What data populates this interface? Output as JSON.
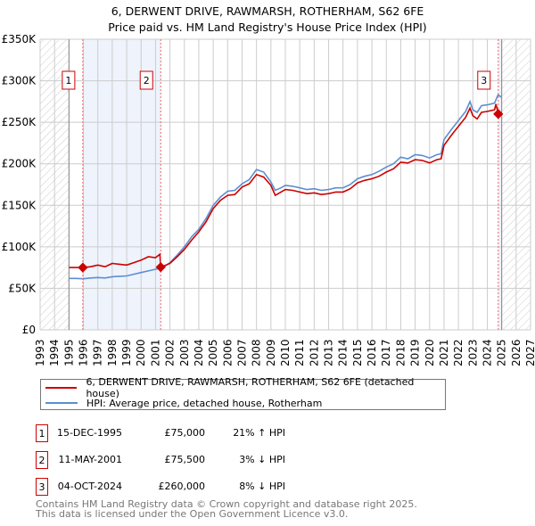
{
  "chart_data": {
    "type": "line",
    "title": "6, DERWENT DRIVE, RAWMARSH, ROTHERHAM, S62 6FE",
    "subtitle": "Price paid vs. HM Land Registry's House Price Index (HPI)",
    "xlabel": "",
    "ylabel": "",
    "xlim": [
      1993,
      2027
    ],
    "ylim": [
      0,
      350000
    ],
    "grid": true,
    "x_ticks": [
      "1993",
      "1994",
      "1995",
      "1996",
      "1997",
      "1998",
      "1999",
      "2000",
      "2001",
      "2002",
      "2003",
      "2004",
      "2005",
      "2006",
      "2007",
      "2008",
      "2009",
      "2010",
      "2011",
      "2012",
      "2013",
      "2014",
      "2015",
      "2016",
      "2017",
      "2018",
      "2019",
      "2020",
      "2021",
      "2022",
      "2023",
      "2024",
      "2025",
      "2026",
      "2027"
    ],
    "y_ticks": [
      {
        "v": 0,
        "label": "£0"
      },
      {
        "v": 50000,
        "label": "£50K"
      },
      {
        "v": 100000,
        "label": "£100K"
      },
      {
        "v": 150000,
        "label": "£150K"
      },
      {
        "v": 200000,
        "label": "£200K"
      },
      {
        "v": 250000,
        "label": "£250K"
      },
      {
        "v": 300000,
        "label": "£300K"
      },
      {
        "v": 350000,
        "label": "£350K"
      }
    ],
    "hatched_ranges": [
      [
        1993,
        1995
      ],
      [
        2025,
        2027
      ]
    ],
    "shaded_ranges": [
      [
        1995.96,
        2001.36
      ],
      [
        2024.76,
        2025
      ]
    ],
    "series": [
      {
        "name": "6, DERWENT DRIVE, RAWMARSH, ROTHERHAM, S62 6FE (detached house)",
        "color": "#cc0000",
        "x": [
          1995,
          1995.96,
          1996.5,
          1997,
          1997.5,
          1998,
          1998.5,
          1999,
          1999.5,
          2000,
          2000.5,
          2001,
          2001.3,
          2001.36,
          2002,
          2002.5,
          2003,
          2003.5,
          2004,
          2004.5,
          2005,
          2005.5,
          2006,
          2006.5,
          2007,
          2007.5,
          2008,
          2008.5,
          2009,
          2009.3,
          2009.7,
          2010,
          2010.5,
          2011,
          2011.5,
          2012,
          2012.5,
          2013,
          2013.5,
          2014,
          2014.5,
          2015,
          2015.5,
          2016,
          2016.5,
          2017,
          2017.5,
          2018,
          2018.5,
          2019,
          2019.5,
          2020,
          2020.5,
          2020.8,
          2021,
          2021.5,
          2022,
          2022.5,
          2022.8,
          2023,
          2023.3,
          2023.6,
          2024,
          2024.5,
          2024.6,
          2024.76
        ],
        "y": [
          75000,
          75000,
          76000,
          78000,
          76000,
          80000,
          79000,
          78000,
          81000,
          84000,
          88000,
          87000,
          91000,
          75500,
          80000,
          88000,
          97000,
          108000,
          118000,
          130000,
          146000,
          156000,
          162000,
          163000,
          172000,
          176000,
          187000,
          184000,
          174000,
          162000,
          166000,
          169000,
          168000,
          166000,
          164000,
          165000,
          163000,
          164000,
          166000,
          166000,
          170000,
          177000,
          180000,
          182000,
          185000,
          190000,
          194000,
          202000,
          201000,
          205000,
          204000,
          201000,
          205000,
          206000,
          222000,
          234000,
          245000,
          256000,
          267000,
          258000,
          254000,
          262000,
          263000,
          265000,
          272000,
          260000
        ]
      },
      {
        "name": "HPI: Average price, detached house, Rotherham",
        "color": "#5b8fd0",
        "x": [
          1995,
          1995.5,
          1996,
          1996.5,
          1997,
          1997.5,
          1998,
          1998.5,
          1999,
          1999.5,
          2000,
          2000.5,
          2001,
          2001.5,
          2002,
          2002.5,
          2003,
          2003.5,
          2004,
          2004.5,
          2005,
          2005.5,
          2006,
          2006.5,
          2007,
          2007.5,
          2008,
          2008.5,
          2009,
          2009.3,
          2009.7,
          2010,
          2010.5,
          2011,
          2011.5,
          2012,
          2012.5,
          2013,
          2013.5,
          2014,
          2014.5,
          2015,
          2015.5,
          2016,
          2016.5,
          2017,
          2017.5,
          2018,
          2018.5,
          2019,
          2019.5,
          2020,
          2020.5,
          2020.8,
          2021,
          2021.5,
          2022,
          2022.5,
          2022.8,
          2023,
          2023.3,
          2023.6,
          2024,
          2024.5,
          2024.75,
          2025
        ],
        "y": [
          62000,
          62000,
          61500,
          62500,
          63000,
          62500,
          64000,
          64500,
          65000,
          67000,
          69000,
          71000,
          73000,
          75000,
          81000,
          90000,
          100000,
          112000,
          121000,
          134000,
          150000,
          160000,
          167000,
          168000,
          176000,
          181000,
          193000,
          190000,
          178000,
          168000,
          171000,
          174000,
          173000,
          171000,
          169000,
          170000,
          168000,
          169000,
          171000,
          171000,
          175000,
          182000,
          185000,
          187000,
          191000,
          196000,
          200000,
          208000,
          206000,
          211000,
          210000,
          207000,
          211000,
          212000,
          229000,
          241000,
          252000,
          263000,
          275000,
          265000,
          262000,
          270000,
          271000,
          273000,
          283000,
          280000
        ]
      }
    ],
    "sales": [
      {
        "id": "1",
        "x": 1995.96,
        "y": 75000
      },
      {
        "id": "2",
        "x": 2001.36,
        "y": 75500
      },
      {
        "id": "3",
        "x": 2024.76,
        "y": 260000
      }
    ]
  },
  "legend": {
    "property_label": "6, DERWENT DRIVE, RAWMARSH, ROTHERHAM, S62 6FE (detached house)",
    "hpi_label": "HPI: Average price, detached house, Rotherham"
  },
  "transactions": [
    {
      "num": "1",
      "date": "15-DEC-1995",
      "price": "£75,000",
      "hpi": "21% ↑ HPI"
    },
    {
      "num": "2",
      "date": "11-MAY-2001",
      "price": "£75,500",
      "hpi": "3% ↓ HPI"
    },
    {
      "num": "3",
      "date": "04-OCT-2024",
      "price": "£260,000",
      "hpi": "8% ↓ HPI"
    }
  ],
  "footer": {
    "line1": "Contains HM Land Registry data © Crown copyright and database right 2025.",
    "line2": "This data is licensed under the Open Government Licence v3.0."
  }
}
